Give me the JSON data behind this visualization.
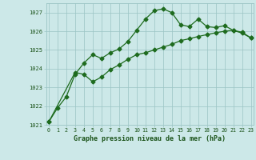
{
  "line1_x": [
    0,
    1,
    2,
    3,
    4,
    5,
    6,
    7,
    8,
    9,
    10,
    11,
    12,
    13,
    14,
    15,
    16,
    17,
    18,
    19,
    20,
    21,
    22,
    23
  ],
  "line1_y": [
    1021.15,
    1021.9,
    1022.5,
    1023.7,
    1024.3,
    1024.75,
    1024.55,
    1024.85,
    1025.05,
    1025.45,
    1026.05,
    1026.65,
    1027.1,
    1027.2,
    1027.0,
    1026.35,
    1026.25,
    1026.65,
    1026.25,
    1026.2,
    1026.3,
    1026.05,
    1025.95,
    1025.65
  ],
  "line2_x": [
    0,
    3,
    4,
    5,
    6,
    7,
    8,
    9,
    10,
    11,
    12,
    13,
    14,
    15,
    16,
    17,
    18,
    19,
    20,
    21,
    22,
    23
  ],
  "line2_y": [
    1021.15,
    1023.8,
    1023.7,
    1023.3,
    1023.55,
    1023.95,
    1024.2,
    1024.5,
    1024.75,
    1024.85,
    1025.0,
    1025.15,
    1025.3,
    1025.5,
    1025.6,
    1025.72,
    1025.82,
    1025.92,
    1026.0,
    1026.05,
    1025.9,
    1025.65
  ],
  "line_color": "#1e6b1e",
  "bg_color": "#cce8e8",
  "grid_color": "#9ac4c4",
  "text_color": "#1a5218",
  "ylim": [
    1021.0,
    1027.5
  ],
  "xlim": [
    -0.3,
    23.3
  ],
  "yticks": [
    1021,
    1022,
    1023,
    1024,
    1025,
    1026,
    1027
  ],
  "xticks": [
    0,
    1,
    2,
    3,
    4,
    5,
    6,
    7,
    8,
    9,
    10,
    11,
    12,
    13,
    14,
    15,
    16,
    17,
    18,
    19,
    20,
    21,
    22,
    23
  ],
  "xlabel": "Graphe pression niveau de la mer (hPa)",
  "markersize": 2.5,
  "linewidth": 0.9
}
